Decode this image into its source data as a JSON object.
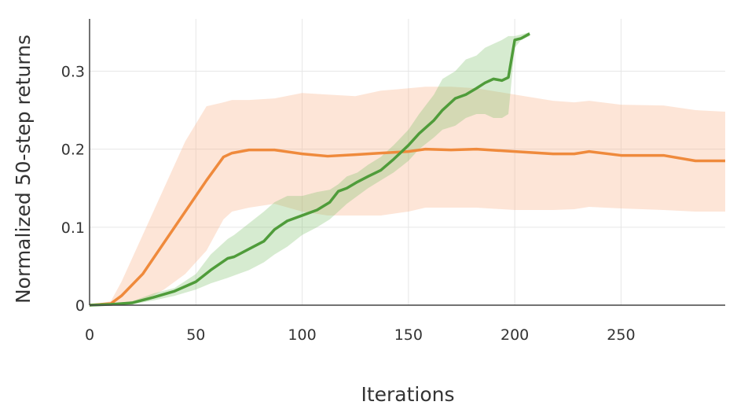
{
  "chart_data": {
    "type": "line",
    "x_label": "Iterations",
    "y_label": "Normalized 50-step returns",
    "xlim": [
      0,
      299
    ],
    "ylim": [
      0,
      0.367
    ],
    "xticks": [
      0,
      50,
      100,
      150,
      200,
      250
    ],
    "yticks": [
      0,
      0.1,
      0.2,
      0.3
    ],
    "grid": true,
    "series": [
      {
        "color": "#ef8a3c",
        "band_color": "rgba(248,180,140,0.35)",
        "x": [
          0,
          10,
          15,
          25,
          35,
          45,
          55,
          63,
          67,
          75,
          87,
          100,
          112,
          125,
          137,
          150,
          158,
          170,
          182,
          200,
          218,
          228,
          235,
          250,
          270,
          285,
          299
        ],
        "values": [
          0,
          0.002,
          0.012,
          0.04,
          0.08,
          0.12,
          0.16,
          0.19,
          0.195,
          0.199,
          0.199,
          0.194,
          0.191,
          0.193,
          0.195,
          0.197,
          0.2,
          0.199,
          0.2,
          0.197,
          0.194,
          0.194,
          0.197,
          0.192,
          0.192,
          0.185,
          0.185
        ],
        "upper": [
          0,
          0.005,
          0.03,
          0.09,
          0.15,
          0.21,
          0.255,
          0.26,
          0.263,
          0.263,
          0.265,
          0.272,
          0.27,
          0.268,
          0.275,
          0.278,
          0.28,
          0.28,
          0.278,
          0.27,
          0.262,
          0.26,
          0.262,
          0.257,
          0.256,
          0.25,
          0.248
        ],
        "lower": [
          0,
          0,
          0.002,
          0.005,
          0.02,
          0.04,
          0.07,
          0.11,
          0.12,
          0.125,
          0.13,
          0.12,
          0.115,
          0.115,
          0.115,
          0.12,
          0.125,
          0.125,
          0.125,
          0.122,
          0.122,
          0.123,
          0.126,
          0.124,
          0.122,
          0.12,
          0.12
        ]
      },
      {
        "color": "#4f9c3a",
        "band_color": "rgba(120,190,100,0.3)",
        "x": [
          0,
          10,
          20,
          30,
          40,
          50,
          57,
          65,
          68,
          75,
          82,
          87,
          93,
          100,
          107,
          113,
          117,
          121,
          126,
          131,
          137,
          143,
          150,
          155,
          162,
          166,
          172,
          177,
          182,
          186,
          190,
          194,
          197,
          200,
          203,
          207
        ],
        "values": [
          0,
          0.001,
          0.003,
          0.01,
          0.018,
          0.03,
          0.045,
          0.06,
          0.062,
          0.072,
          0.082,
          0.097,
          0.108,
          0.115,
          0.122,
          0.132,
          0.146,
          0.15,
          0.158,
          0.165,
          0.173,
          0.187,
          0.205,
          0.22,
          0.237,
          0.25,
          0.265,
          0.27,
          0.278,
          0.285,
          0.29,
          0.288,
          0.292,
          0.34,
          0.342,
          0.348
        ],
        "upper": [
          0,
          0.002,
          0.005,
          0.015,
          0.022,
          0.04,
          0.065,
          0.085,
          0.09,
          0.105,
          0.12,
          0.132,
          0.14,
          0.14,
          0.145,
          0.148,
          0.155,
          0.165,
          0.17,
          0.18,
          0.19,
          0.205,
          0.225,
          0.245,
          0.27,
          0.29,
          0.3,
          0.315,
          0.32,
          0.33,
          0.335,
          0.34,
          0.345,
          0.345,
          0.347,
          0.35
        ],
        "lower": [
          0,
          0,
          0.001,
          0.006,
          0.012,
          0.02,
          0.028,
          0.035,
          0.038,
          0.045,
          0.055,
          0.065,
          0.075,
          0.09,
          0.1,
          0.11,
          0.12,
          0.13,
          0.14,
          0.15,
          0.16,
          0.17,
          0.185,
          0.2,
          0.215,
          0.225,
          0.23,
          0.24,
          0.245,
          0.245,
          0.24,
          0.24,
          0.245,
          0.33,
          0.34,
          0.345
        ]
      }
    ]
  }
}
